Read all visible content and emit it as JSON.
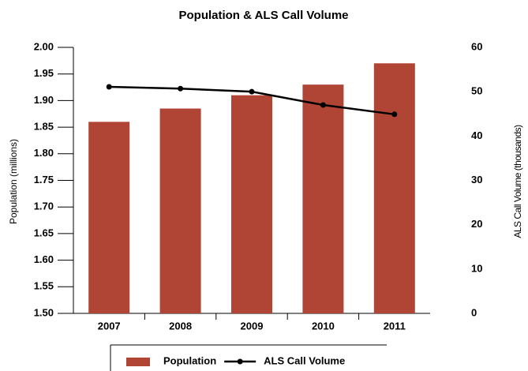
{
  "chart_data": {
    "type": "bar",
    "title": "Population & ALS Call Volume",
    "y_label": "Population (millions)",
    "y2_label": "ALS Call Volume (thousands)",
    "categories": [
      "2007",
      "2008",
      "2009",
      "2010",
      "2011"
    ],
    "series": [
      {
        "name": "Population",
        "type": "bar",
        "color": "#b04535",
        "values": [
          1.86,
          1.885,
          1.91,
          1.93,
          1.97
        ]
      },
      {
        "name": "ALS Call Volume",
        "type": "line",
        "axis": "y2",
        "color": "#000000",
        "values": [
          51.1,
          50.7,
          50.0,
          47.0,
          44.9
        ]
      }
    ],
    "ylim": [
      1.5,
      2.0
    ],
    "yticks": [
      {
        "value": 1.5,
        "label": "1.50"
      },
      {
        "value": 1.55,
        "label": "1.55"
      },
      {
        "value": 1.6,
        "label": "1.60"
      },
      {
        "value": 1.65,
        "label": "1.65"
      },
      {
        "value": 1.7,
        "label": "1.70"
      },
      {
        "value": 1.75,
        "label": "1.75"
      },
      {
        "value": 1.8,
        "label": "1.80"
      },
      {
        "value": 1.85,
        "label": "1.85"
      },
      {
        "value": 1.9,
        "label": "1.90"
      },
      {
        "value": 1.95,
        "label": "1.95"
      },
      {
        "value": 2.0,
        "label": "2.00"
      }
    ],
    "y2lim": [
      0,
      60
    ],
    "y2ticks": [
      0,
      10,
      20,
      30,
      40,
      50,
      60
    ],
    "legend": "bottom",
    "grid": false
  }
}
